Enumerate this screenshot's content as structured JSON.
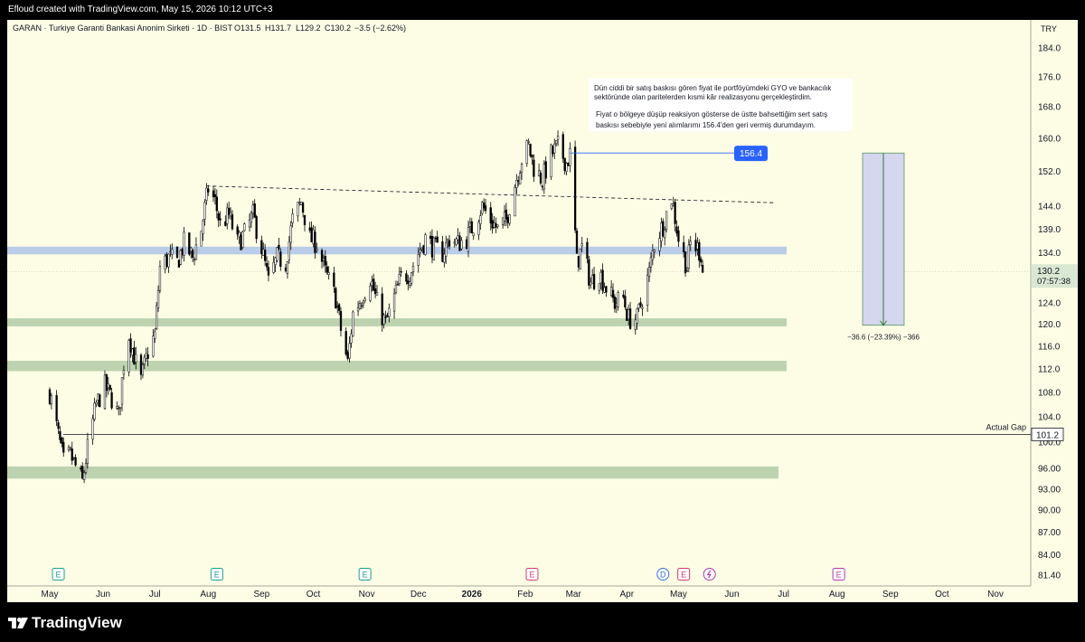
{
  "header": {
    "created_line": "Efloud created with TradingView.com, May 15, 2026 10:12 UTC+3"
  },
  "brand": {
    "name": "TradingView",
    "icon": "tradingview-logo"
  },
  "chart_data": {
    "type": "candlestick",
    "title": "GARAN · Turkiye Garanti Bankasi Anonim Sirketi · 1D · BIST",
    "symbol": "GARAN",
    "ohlc_label": {
      "open": "O131.5",
      "high": "H131.7",
      "low": "L129.2",
      "close": "C130.2",
      "change": "−3.5 (−2.62%)"
    },
    "currency": "TRY",
    "last_price": "130.2",
    "countdown": "07:57:38",
    "y_axis": {
      "scale": "log",
      "range": [
        80.5,
        186
      ],
      "ticks": [
        "184.0",
        "176.0",
        "168.0",
        "160.0",
        "152.0",
        "144.0",
        "139.0",
        "134.0",
        "128.0",
        "124.0",
        "120.0",
        "116.0",
        "112.0",
        "108.0",
        "104.0",
        "100.0",
        "96.00",
        "93.00",
        "90.00",
        "87.00",
        "84.00",
        "81.40"
      ]
    },
    "x_axis": {
      "ticks": [
        "May",
        "Jun",
        "Jul",
        "Aug",
        "Sep",
        "Oct",
        "Nov",
        "Dec",
        "2026",
        "Feb",
        "Mar",
        "Apr",
        "May",
        "Jun",
        "Jul",
        "Aug",
        "Sep",
        "Oct",
        "Nov"
      ]
    },
    "price_path": [
      [
        "2025-05-01",
        108
      ],
      [
        "2025-05-06",
        101
      ],
      [
        "2025-05-09",
        97
      ],
      [
        "2025-05-13",
        98
      ],
      [
        "2025-05-20",
        94
      ],
      [
        "2025-05-23",
        99
      ],
      [
        "2025-05-28",
        106
      ],
      [
        "2025-06-02",
        109
      ],
      [
        "2025-06-06",
        107
      ],
      [
        "2025-06-10",
        104
      ],
      [
        "2025-06-13",
        113
      ],
      [
        "2025-06-16",
        118
      ],
      [
        "2025-06-20",
        113
      ],
      [
        "2025-06-23",
        110
      ],
      [
        "2025-06-27",
        115
      ],
      [
        "2025-07-01",
        118
      ],
      [
        "2025-07-04",
        131
      ],
      [
        "2025-07-09",
        133
      ],
      [
        "2025-07-14",
        132
      ],
      [
        "2025-07-18",
        136
      ],
      [
        "2025-07-23",
        133
      ],
      [
        "2025-07-28",
        139
      ],
      [
        "2025-08-01",
        148
      ],
      [
        "2025-08-05",
        145
      ],
      [
        "2025-08-08",
        140
      ],
      [
        "2025-08-13",
        142
      ],
      [
        "2025-08-18",
        136
      ],
      [
        "2025-08-22",
        138
      ],
      [
        "2025-08-27",
        142
      ],
      [
        "2025-09-01",
        135
      ],
      [
        "2025-09-05",
        128
      ],
      [
        "2025-09-10",
        133
      ],
      [
        "2025-09-15",
        132
      ],
      [
        "2025-09-19",
        141
      ],
      [
        "2025-09-24",
        145
      ],
      [
        "2025-09-29",
        137
      ],
      [
        "2025-10-03",
        136
      ],
      [
        "2025-10-08",
        130
      ],
      [
        "2025-10-14",
        125
      ],
      [
        "2025-10-17",
        119
      ],
      [
        "2025-10-21",
        113
      ],
      [
        "2025-10-24",
        122
      ],
      [
        "2025-10-29",
        125
      ],
      [
        "2025-11-03",
        129
      ],
      [
        "2025-11-07",
        124
      ],
      [
        "2025-11-12",
        120
      ],
      [
        "2025-11-17",
        125
      ],
      [
        "2025-11-21",
        129
      ],
      [
        "2025-11-26",
        130
      ],
      [
        "2025-12-01",
        134
      ],
      [
        "2025-12-05",
        137
      ],
      [
        "2025-12-10",
        135
      ],
      [
        "2025-12-15",
        134
      ],
      [
        "2025-12-19",
        137
      ],
      [
        "2025-12-24",
        136
      ],
      [
        "2025-12-29",
        137
      ],
      [
        "2026-01-02",
        140
      ],
      [
        "2026-01-07",
        144
      ],
      [
        "2026-01-12",
        141
      ],
      [
        "2026-01-16",
        139
      ],
      [
        "2026-01-21",
        141
      ],
      [
        "2026-01-26",
        149
      ],
      [
        "2026-01-30",
        155
      ],
      [
        "2026-02-03",
        158
      ],
      [
        "2026-02-06",
        153
      ],
      [
        "2026-02-11",
        150
      ],
      [
        "2026-02-16",
        156
      ],
      [
        "2026-02-20",
        158
      ],
      [
        "2026-02-25",
        154
      ],
      [
        "2026-02-27",
        156
      ],
      [
        "2026-03-03",
        132
      ],
      [
        "2026-03-06",
        135
      ],
      [
        "2026-03-11",
        128
      ],
      [
        "2026-03-16",
        130
      ],
      [
        "2026-03-20",
        127
      ],
      [
        "2026-03-25",
        124
      ],
      [
        "2026-03-30",
        125
      ],
      [
        "2026-04-02",
        121
      ],
      [
        "2026-04-07",
        121
      ],
      [
        "2026-04-10",
        125
      ],
      [
        "2026-04-14",
        130
      ],
      [
        "2026-04-17",
        136
      ],
      [
        "2026-04-22",
        140
      ],
      [
        "2026-04-27",
        146
      ],
      [
        "2026-05-01",
        137
      ],
      [
        "2026-05-06",
        131
      ],
      [
        "2026-05-08",
        136
      ],
      [
        "2026-05-12",
        135
      ],
      [
        "2026-05-14",
        133.7
      ],
      [
        "2026-05-15",
        130.2
      ]
    ],
    "zones": [
      {
        "name": "resistance-zone",
        "low": 133.7,
        "high": 135.3,
        "color": "#b9cce8"
      },
      {
        "name": "support-zone-120",
        "low": 119.6,
        "high": 121.1,
        "color": "#bdd3b0"
      },
      {
        "name": "support-zone-112",
        "low": 111.6,
        "high": 113.4,
        "color": "#bdd3b0"
      },
      {
        "name": "support-zone-95",
        "low": 94.5,
        "high": 96.3,
        "color": "#bdd3b0"
      }
    ],
    "trendline": {
      "from": [
        "2025-07-31",
        148.6
      ],
      "to": [
        "2026-06-26",
        144.8
      ]
    },
    "sell_level": {
      "price": "156.4",
      "from": "2026-02-27"
    },
    "actual_gap": {
      "label": "Actual Gap",
      "price": "101.2"
    },
    "measure": {
      "from_price": 156.4,
      "to_price": 119.8,
      "label": "−36.6 (−23.39%) −366"
    },
    "annotation": [
      "Dün ciddi bir satış baskısı gören fiyat ile portföyümdeki GYO ve bankacılık",
      "sektöründe olan paritelerden kısmi kâr realizasyonu gerçekleştirdim.",
      "Fiyat o bölgeye düşüp reaksiyon gösterse de üstte bahsettiğim sert satış",
      "baskısı sebebiyle yeni alımlarımı 156.4'den geri vermiş durumdayım."
    ],
    "events": [
      {
        "date": "2025-05-06",
        "type": "E",
        "color": "#1e9e8e"
      },
      {
        "date": "2025-08-06",
        "type": "E",
        "color": "#1e9e8e"
      },
      {
        "date": "2025-10-31",
        "type": "E",
        "color": "#1e9e8e"
      },
      {
        "date": "2026-02-05",
        "type": "E",
        "color": "#d23c6a"
      },
      {
        "date": "2026-04-22",
        "type": "D",
        "color": "#3a6fd8"
      },
      {
        "date": "2026-05-04",
        "type": "E",
        "color": "#d23c6a"
      },
      {
        "date": "2026-05-19",
        "type": "split",
        "color": "#b03ab5"
      },
      {
        "date": "2026-08-02",
        "type": "E",
        "color": "#b03ab5"
      }
    ],
    "colors": {
      "up": "#000000",
      "down": "#000000",
      "background": "#fdfde6",
      "sell_label": "#2962ff",
      "measure_fill": "#d5d6ef",
      "measure_line": "#2e7d32"
    }
  }
}
